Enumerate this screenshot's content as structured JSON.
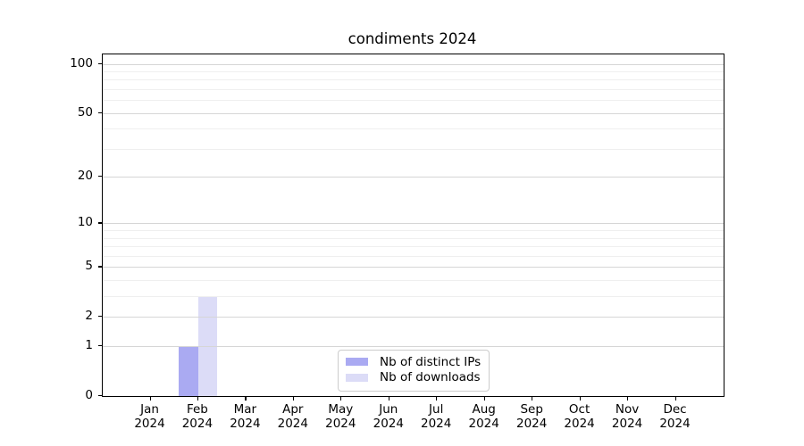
{
  "chart_data": {
    "type": "bar",
    "title": "condiments 2024",
    "categories": [
      "Jan 2024",
      "Feb 2024",
      "Mar 2024",
      "Apr 2024",
      "May 2024",
      "Jun 2024",
      "Jul 2024",
      "Aug 2024",
      "Sep 2024",
      "Oct 2024",
      "Nov 2024",
      "Dec 2024"
    ],
    "series": [
      {
        "name": "Nb of distinct IPs",
        "color": "#aaaaf2",
        "values": [
          0,
          1,
          0,
          0,
          0,
          0,
          0,
          0,
          0,
          0,
          0,
          0
        ]
      },
      {
        "name": "Nb of downloads",
        "color": "#dcdcf7",
        "values": [
          0,
          3,
          0,
          0,
          0,
          0,
          0,
          0,
          0,
          0,
          0,
          0
        ]
      }
    ],
    "xlabel": "",
    "ylabel": "",
    "yscale": "log1p",
    "ylim": [
      0,
      114
    ],
    "yticks": [
      0,
      1,
      2,
      5,
      10,
      20,
      50,
      100
    ],
    "minor_yticks": [
      3,
      4,
      6,
      7,
      8,
      9,
      30,
      40,
      60,
      70,
      80,
      90
    ],
    "grid": "horizontal-only",
    "legend_position": "inside lower-center"
  },
  "colors": {
    "major_grid": "#d6d6d6",
    "minor_grid": "#efefef",
    "spine": "#000000",
    "legend_border": "#cccccc",
    "text": "#000000",
    "background": "#ffffff"
  }
}
